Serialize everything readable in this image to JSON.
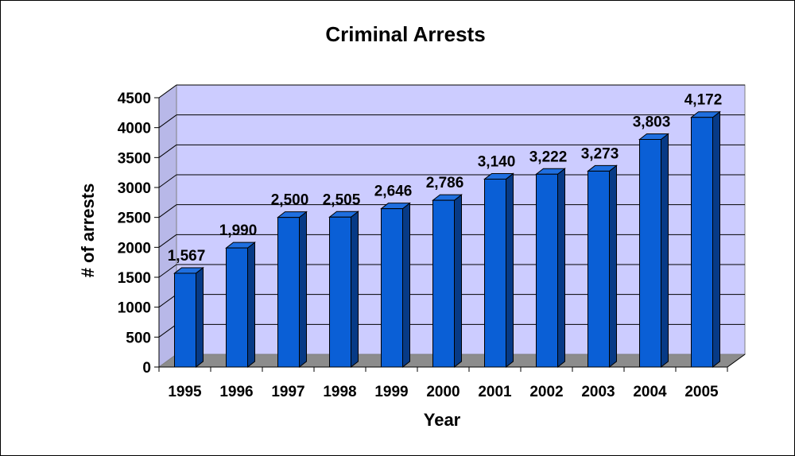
{
  "chart_data": {
    "type": "bar",
    "title": "Criminal Arrests",
    "xlabel": "Year",
    "ylabel": "# of arrests",
    "categories": [
      "1995",
      "1996",
      "1997",
      "1998",
      "1999",
      "2000",
      "2001",
      "2002",
      "2003",
      "2004",
      "2005"
    ],
    "values": [
      1567,
      1990,
      2500,
      2505,
      2646,
      2786,
      3140,
      3222,
      3273,
      3803,
      4172
    ],
    "data_labels": [
      "1,567",
      "1,990",
      "2,500",
      "2,505",
      "2,646",
      "2,786",
      "3,140",
      "3,222",
      "3,273",
      "3,803",
      "4,172"
    ],
    "ylim": [
      0,
      4500
    ],
    "yticks": [
      "0",
      "500",
      "1000",
      "1500",
      "2000",
      "2500",
      "3000",
      "3500",
      "4000",
      "4500"
    ],
    "grid": true,
    "legend": "none",
    "colors": {
      "bar_front": "#0a5fd6",
      "bar_side": "#073a86",
      "bar_top": "#1f6fe0",
      "plot_back": "#ccccff",
      "plot_floor": "#8c8c8c"
    }
  }
}
